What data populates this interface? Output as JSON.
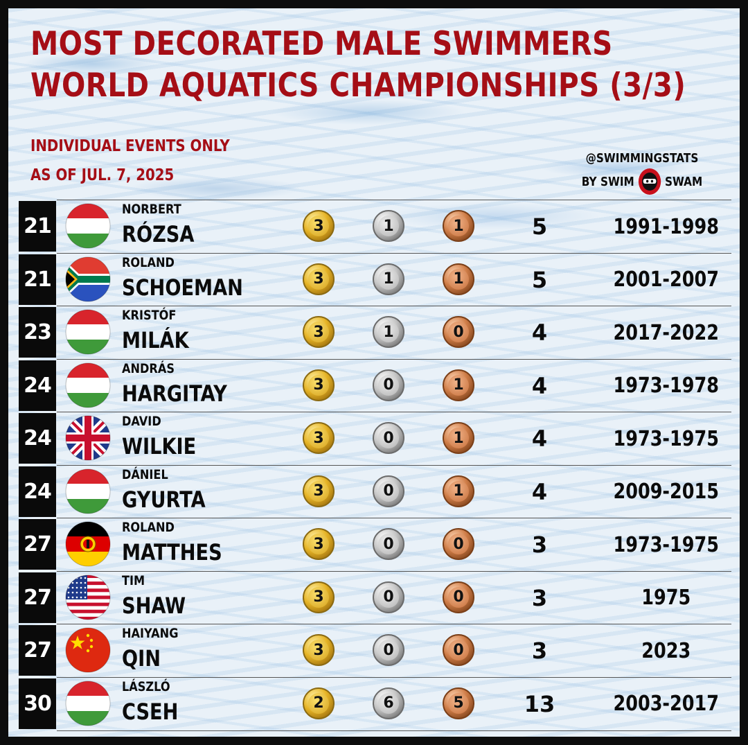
{
  "header": {
    "title_line1": "MOST DECORATED MALE SWIMMERS",
    "title_line2": "WORLD AQUATICS CHAMPIONSHIPS (3/3)",
    "subtitle_line1": "INDIVIDUAL EVENTS ONLY",
    "subtitle_line2": "AS OF JUL. 7, 2025"
  },
  "brand": {
    "handle": "@SWIMMINGSTATS",
    "by_left": "BY SWIM",
    "by_right": "SWAM",
    "logo_icon": "swimswam-ninja-logo-icon"
  },
  "colors": {
    "title": "#a50e16",
    "gold": "#e6b427",
    "silver": "#c4c4c4",
    "bronze": "#cf7d48"
  },
  "swimmers": [
    {
      "rank": "21",
      "flag": "hungary",
      "first": "NORBERT",
      "last": "RÓZSA",
      "gold": "3",
      "silver": "1",
      "bronze": "1",
      "total": "5",
      "years": "1991-1998"
    },
    {
      "rank": "21",
      "flag": "south-africa",
      "first": "ROLAND",
      "last": "SCHOEMAN",
      "gold": "3",
      "silver": "1",
      "bronze": "1",
      "total": "5",
      "years": "2001-2007"
    },
    {
      "rank": "23",
      "flag": "hungary",
      "first": "KRISTÓF",
      "last": "MILÁK",
      "gold": "3",
      "silver": "1",
      "bronze": "0",
      "total": "4",
      "years": "2017-2022"
    },
    {
      "rank": "24",
      "flag": "hungary",
      "first": "ANDRÁS",
      "last": "HARGITAY",
      "gold": "3",
      "silver": "0",
      "bronze": "1",
      "total": "4",
      "years": "1973-1978"
    },
    {
      "rank": "24",
      "flag": "united-kingdom",
      "first": "DAVID",
      "last": "WILKIE",
      "gold": "3",
      "silver": "0",
      "bronze": "1",
      "total": "4",
      "years": "1973-1975"
    },
    {
      "rank": "24",
      "flag": "hungary",
      "first": "DÁNIEL",
      "last": "GYURTA",
      "gold": "3",
      "silver": "0",
      "bronze": "1",
      "total": "4",
      "years": "2009-2015"
    },
    {
      "rank": "27",
      "flag": "east-germany",
      "first": "ROLAND",
      "last": "MATTHES",
      "gold": "3",
      "silver": "0",
      "bronze": "0",
      "total": "3",
      "years": "1973-1975"
    },
    {
      "rank": "27",
      "flag": "united-states",
      "first": "TIM",
      "last": "SHAW",
      "gold": "3",
      "silver": "0",
      "bronze": "0",
      "total": "3",
      "years": "1975"
    },
    {
      "rank": "27",
      "flag": "china",
      "first": "HAIYANG",
      "last": "QIN",
      "gold": "3",
      "silver": "0",
      "bronze": "0",
      "total": "3",
      "years": "2023"
    },
    {
      "rank": "30",
      "flag": "hungary",
      "first": "LÁSZLÓ",
      "last": "CSEH",
      "gold": "2",
      "silver": "6",
      "bronze": "5",
      "total": "13",
      "years": "2003-2017"
    }
  ]
}
